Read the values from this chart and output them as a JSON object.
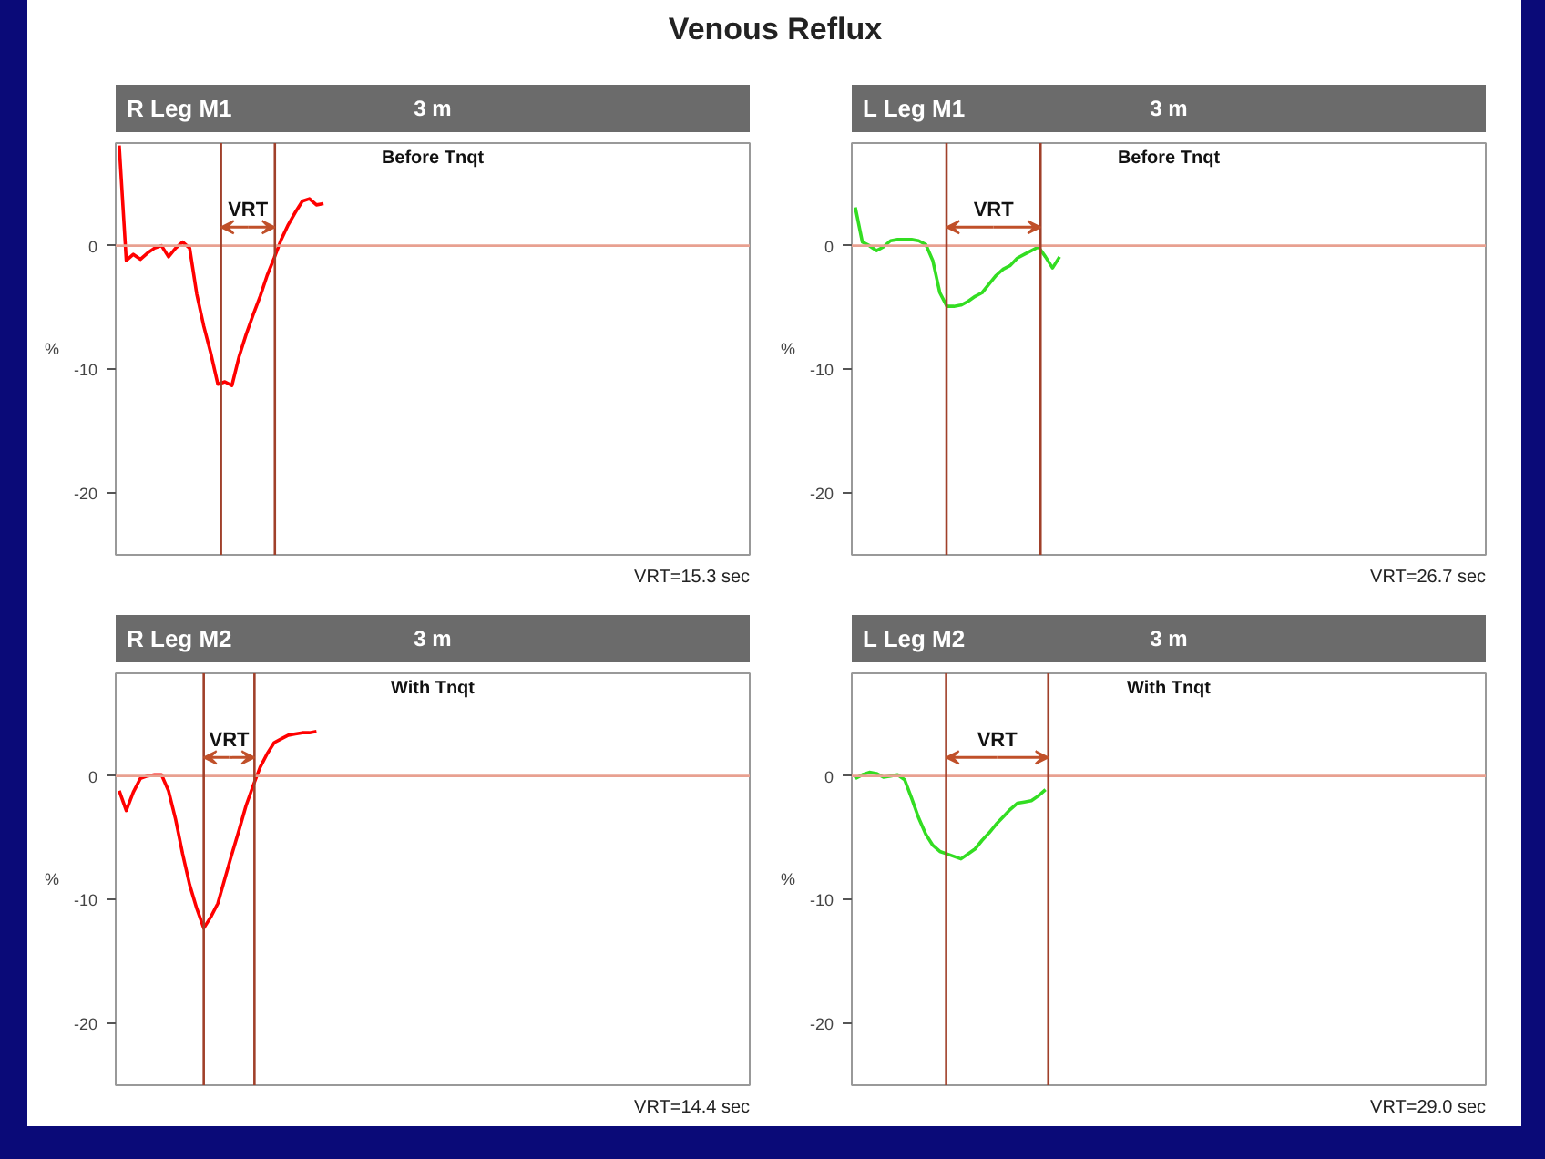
{
  "chart_data": [
    {
      "type": "other",
      "title": "Venous Reflux"
    },
    {
      "type": "line",
      "title": "R Leg M1",
      "subtitle": "Before Tnqt",
      "ylabel": "%",
      "ylim": [
        -25,
        8.3
      ],
      "yticks": [
        -20,
        -10,
        0
      ],
      "tick_labels": "y",
      "categories": [
        null,
        null,
        null,
        null,
        null,
        null,
        null,
        null,
        null,
        null,
        null,
        null,
        null,
        null,
        null,
        null,
        null,
        null,
        null,
        null,
        null,
        null,
        null,
        null,
        null,
        null,
        null,
        null,
        null,
        null,
        null,
        null,
        null,
        null,
        null,
        null,
        null,
        null,
        null,
        null,
        null,
        null,
        null,
        null,
        null,
        null,
        null,
        null,
        null,
        null,
        null,
        null,
        null,
        null,
        null,
        null,
        null,
        null,
        null,
        null,
        null,
        null,
        null,
        null,
        null,
        null,
        null,
        null,
        null,
        null,
        null,
        null,
        null,
        null,
        null,
        null,
        null,
        null,
        null,
        null,
        null,
        null,
        null,
        null,
        null,
        null,
        null,
        null,
        null,
        null
      ],
      "annotations": [
        "3 m",
        "VRT=15.3 sec",
        "VRT"
      ],
      "ref_lines": [
        {
          "axis": "y",
          "value": 0,
          "color": "#e8a090"
        }
      ],
      "series": [
        {
          "color": "#ff0000",
          "values": [
            8.1,
            -1.2,
            -0.7,
            -1.1,
            -0.6,
            -0.2,
            0.0,
            -0.9,
            -0.2,
            0.3,
            -0.2,
            -3.9,
            -6.5,
            -8.7,
            -11.2,
            -11.0,
            -11.3,
            -9.0,
            -7.2,
            -5.6,
            -4.1,
            -2.4,
            -1.0,
            0.5,
            1.7,
            2.7,
            3.6,
            3.8,
            3.3,
            3.4,
            null,
            null,
            null,
            null,
            null,
            null,
            null,
            null,
            null,
            null,
            null,
            null,
            null,
            null,
            null,
            null,
            null,
            null,
            null,
            null,
            null,
            null,
            null,
            null,
            null,
            null,
            null,
            null,
            null,
            null,
            null,
            null,
            null,
            null,
            null,
            null,
            null,
            null,
            null,
            null,
            null,
            null,
            null,
            null,
            null,
            null,
            null,
            null,
            null,
            null,
            null,
            null,
            null,
            null,
            null,
            null,
            null,
            null,
            null,
            null
          ]
        }
      ]
    },
    {
      "type": "line",
      "title": "L Leg M1",
      "subtitle": "Before Tnqt",
      "ylabel": "%",
      "ylim": [
        -25,
        8.3
      ],
      "yticks": [
        -20,
        -10,
        0
      ],
      "tick_labels": "y",
      "categories": [
        null,
        null,
        null,
        null,
        null,
        null,
        null,
        null,
        null,
        null,
        null,
        null,
        null,
        null,
        null,
        null,
        null,
        null,
        null,
        null,
        null,
        null,
        null,
        null,
        null,
        null,
        null,
        null,
        null,
        null,
        null,
        null,
        null,
        null,
        null,
        null,
        null,
        null,
        null,
        null,
        null,
        null,
        null,
        null,
        null,
        null,
        null,
        null,
        null,
        null,
        null,
        null,
        null,
        null,
        null,
        null,
        null,
        null,
        null,
        null,
        null,
        null,
        null,
        null,
        null,
        null,
        null,
        null,
        null,
        null,
        null,
        null,
        null,
        null,
        null,
        null,
        null,
        null,
        null,
        null,
        null,
        null,
        null,
        null,
        null,
        null,
        null,
        null,
        null,
        null
      ],
      "annotations": [
        "3 m",
        "VRT=26.7 sec",
        "VRT"
      ],
      "ref_lines": [
        {
          "axis": "y",
          "value": 0,
          "color": "#e8a090"
        }
      ],
      "series": [
        {
          "color": "#33dd22",
          "values": [
            3.1,
            0.3,
            0.0,
            -0.4,
            -0.1,
            0.4,
            0.5,
            0.5,
            0.5,
            0.4,
            0.1,
            -1.2,
            -3.8,
            -4.9,
            -4.9,
            -4.8,
            -4.5,
            -4.1,
            -3.8,
            -3.1,
            -2.4,
            -1.9,
            -1.6,
            -1.0,
            -0.7,
            -0.4,
            -0.1,
            -0.9,
            -1.8,
            -0.9,
            null,
            null,
            null,
            null,
            null,
            null,
            null,
            null,
            null,
            null,
            null,
            null,
            null,
            null,
            null,
            null,
            null,
            null,
            null,
            null,
            null,
            null,
            null,
            null,
            null,
            null,
            null,
            null,
            null,
            null,
            null,
            null,
            null,
            null,
            null,
            null,
            null,
            null,
            null,
            null,
            null,
            null,
            null,
            null,
            null,
            null,
            null,
            null,
            null,
            null,
            null,
            null,
            null,
            null,
            null,
            null,
            null,
            null,
            null,
            null
          ]
        }
      ]
    },
    {
      "type": "line",
      "title": "R Leg M2",
      "subtitle": "With Tnqt",
      "ylabel": "%",
      "ylim": [
        -25,
        8.3
      ],
      "yticks": [
        -20,
        -10,
        0
      ],
      "tick_labels": "y",
      "categories": [
        null,
        null,
        null,
        null,
        null,
        null,
        null,
        null,
        null,
        null,
        null,
        null,
        null,
        null,
        null,
        null,
        null,
        null,
        null,
        null,
        null,
        null,
        null,
        null,
        null,
        null,
        null,
        null,
        null,
        null,
        null,
        null,
        null,
        null,
        null,
        null,
        null,
        null,
        null,
        null,
        null,
        null,
        null,
        null,
        null,
        null,
        null,
        null,
        null,
        null,
        null,
        null,
        null,
        null,
        null,
        null,
        null,
        null,
        null,
        null,
        null,
        null,
        null,
        null,
        null,
        null,
        null,
        null,
        null,
        null,
        null,
        null,
        null,
        null,
        null,
        null,
        null,
        null,
        null,
        null,
        null,
        null,
        null,
        null,
        null,
        null,
        null,
        null,
        null,
        null
      ],
      "annotations": [
        "3 m",
        "VRT=14.4 sec",
        "VRT"
      ],
      "ref_lines": [
        {
          "axis": "y",
          "value": 0,
          "color": "#e8a090"
        }
      ],
      "series": [
        {
          "color": "#ff0000",
          "values": [
            -1.2,
            -2.8,
            -1.3,
            -0.2,
            0.0,
            0.1,
            0.1,
            -1.2,
            -3.5,
            -6.3,
            -8.8,
            -10.7,
            -12.3,
            -11.4,
            -10.3,
            -8.3,
            -6.3,
            -4.4,
            -2.4,
            -0.8,
            0.7,
            1.8,
            2.7,
            3.0,
            3.3,
            3.4,
            3.5,
            3.5,
            3.6,
            null,
            null,
            null,
            null,
            null,
            null,
            null,
            null,
            null,
            null,
            null,
            null,
            null,
            null,
            null,
            null,
            null,
            null,
            null,
            null,
            null,
            null,
            null,
            null,
            null,
            null,
            null,
            null,
            null,
            null,
            null,
            null,
            null,
            null,
            null,
            null,
            null,
            null,
            null,
            null,
            null,
            null,
            null,
            null,
            null,
            null,
            null,
            null,
            null,
            null,
            null,
            null,
            null,
            null,
            null,
            null,
            null,
            null,
            null,
            null,
            null
          ]
        }
      ]
    },
    {
      "type": "line",
      "title": "L Leg M2",
      "subtitle": "With Tnqt",
      "ylabel": "%",
      "ylim": [
        -25,
        8.3
      ],
      "yticks": [
        -20,
        -10,
        0
      ],
      "tick_labels": "y",
      "categories": [
        null,
        null,
        null,
        null,
        null,
        null,
        null,
        null,
        null,
        null,
        null,
        null,
        null,
        null,
        null,
        null,
        null,
        null,
        null,
        null,
        null,
        null,
        null,
        null,
        null,
        null,
        null,
        null,
        null,
        null,
        null,
        null,
        null,
        null,
        null,
        null,
        null,
        null,
        null,
        null,
        null,
        null,
        null,
        null,
        null,
        null,
        null,
        null,
        null,
        null,
        null,
        null,
        null,
        null,
        null,
        null,
        null,
        null,
        null,
        null,
        null,
        null,
        null,
        null,
        null,
        null,
        null,
        null,
        null,
        null,
        null,
        null,
        null,
        null,
        null,
        null,
        null,
        null,
        null,
        null,
        null,
        null,
        null,
        null,
        null,
        null,
        null,
        null,
        null,
        null
      ],
      "annotations": [
        "3 m",
        "VRT=29.0 sec",
        "VRT"
      ],
      "ref_lines": [
        {
          "axis": "y",
          "value": 0,
          "color": "#e8a090"
        }
      ],
      "series": [
        {
          "color": "#33dd22",
          "values": [
            -0.2,
            0.1,
            0.3,
            0.2,
            -0.1,
            0.0,
            0.1,
            -0.3,
            -1.8,
            -3.4,
            -4.7,
            -5.6,
            -6.1,
            -6.3,
            -6.5,
            -6.7,
            -6.3,
            -5.9,
            -5.2,
            -4.6,
            -3.9,
            -3.3,
            -2.7,
            -2.2,
            -2.1,
            -2.0,
            -1.6,
            -1.1,
            null,
            null,
            null,
            null,
            null,
            null,
            null,
            null,
            null,
            null,
            null,
            null,
            null,
            null,
            null,
            null,
            null,
            null,
            null,
            null,
            null,
            null,
            null,
            null,
            null,
            null,
            null,
            null,
            null,
            null,
            null,
            null,
            null,
            null,
            null,
            null,
            null,
            null,
            null,
            null,
            null,
            null,
            null,
            null,
            null,
            null,
            null,
            null,
            null,
            null,
            null,
            null,
            null,
            null,
            null,
            null,
            null,
            null,
            null,
            null,
            null,
            null
          ]
        }
      ]
    }
  ]
}
